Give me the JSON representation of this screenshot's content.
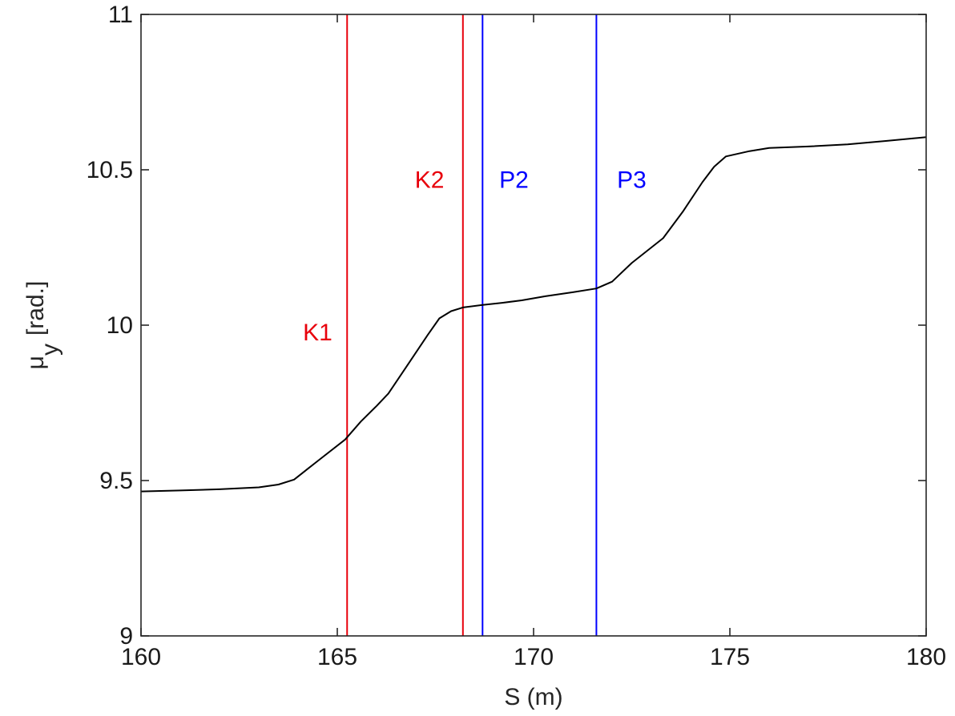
{
  "chart_data": {
    "type": "line",
    "title": "",
    "xlabel": "S (m)",
    "ylabel_main": "μ",
    "ylabel_sub": "y",
    "ylabel_unit": "[rad.]",
    "xlim": [
      160,
      180
    ],
    "ylim": [
      9,
      11
    ],
    "xticks": [
      160,
      165,
      170,
      175,
      180
    ],
    "yticks": [
      9,
      9.5,
      10,
      10.5,
      11
    ],
    "ytick_labels": [
      "9",
      "9.5",
      "10",
      "10.5",
      "11"
    ],
    "grid": false,
    "series": [
      {
        "color": "#000000",
        "x": [
          160,
          161,
          162,
          163,
          163.5,
          163.9,
          164.5,
          165.2,
          165.6,
          166,
          166.3,
          166.7,
          167.3,
          167.6,
          167.9,
          168.2,
          168.7,
          169.2,
          169.7,
          170.3,
          171,
          171.6,
          172,
          172.5,
          173.3,
          173.8,
          174.3,
          174.6,
          174.9,
          175.5,
          176,
          177,
          178,
          179,
          180
        ],
        "y": [
          9.465,
          9.468,
          9.472,
          9.478,
          9.487,
          9.503,
          9.563,
          9.632,
          9.69,
          9.74,
          9.78,
          9.855,
          9.968,
          10.022,
          10.045,
          10.057,
          10.065,
          10.072,
          10.08,
          10.093,
          10.106,
          10.118,
          10.14,
          10.2,
          10.28,
          10.365,
          10.46,
          10.51,
          10.543,
          10.56,
          10.57,
          10.575,
          10.582,
          10.593,
          10.605
        ]
      }
    ],
    "markers": [
      {
        "label": "K1",
        "x": 165.25,
        "color": "#e8000b",
        "label_x": 164.5,
        "label_y": 9.98
      },
      {
        "label": "K2",
        "x": 168.2,
        "color": "#e8000b",
        "label_x": 167.35,
        "label_y": 10.47
      },
      {
        "label": "P2",
        "x": 168.7,
        "color": "#0000ff",
        "label_x": 169.5,
        "label_y": 10.47
      },
      {
        "label": "P3",
        "x": 171.6,
        "color": "#0000ff",
        "label_x": 172.5,
        "label_y": 10.47
      }
    ]
  }
}
